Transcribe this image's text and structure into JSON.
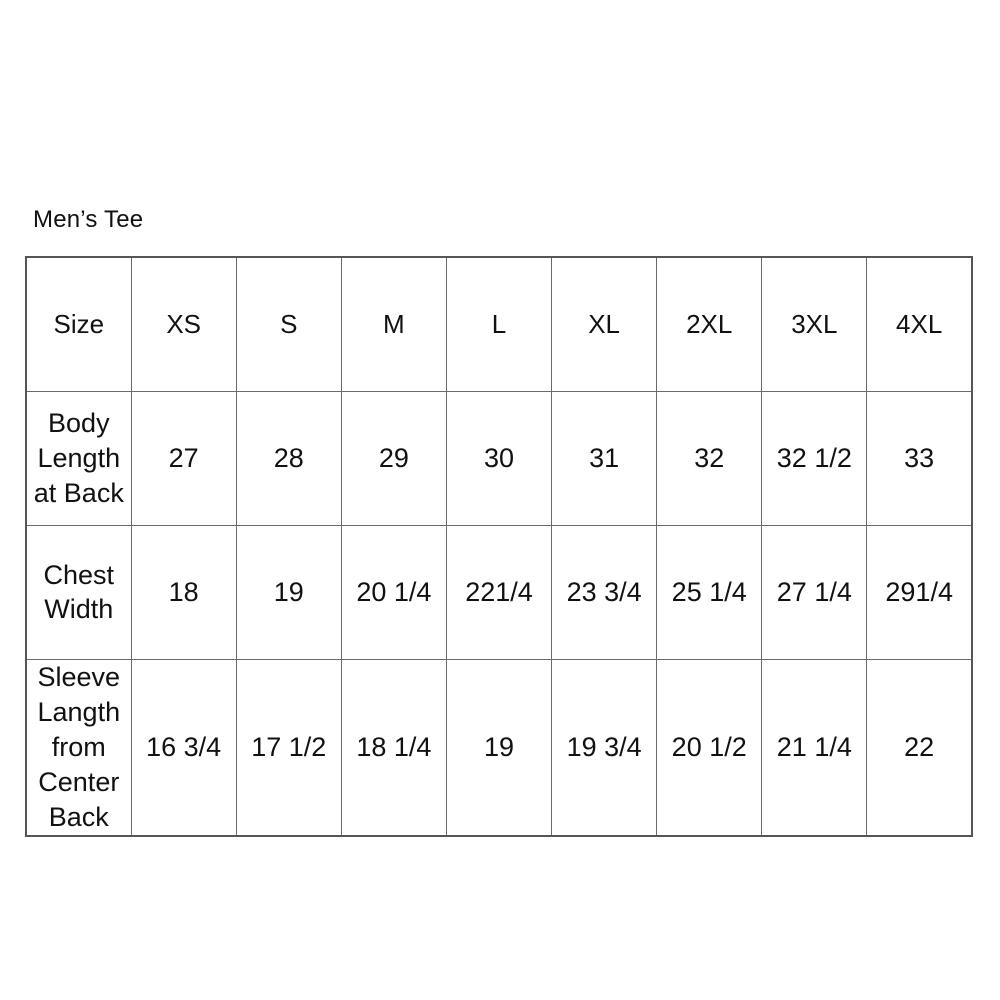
{
  "title": "Men’s Tee",
  "colors": {
    "background": "#ffffff",
    "text": "#111111",
    "grid_border": "#6a6a6a",
    "outer_border": "#565656"
  },
  "chart_data": {
    "type": "table",
    "title": "Men’s Tee",
    "columns": [
      "Size",
      "XS",
      "S",
      "M",
      "L",
      "XL",
      "2XL",
      "3XL",
      "4XL"
    ],
    "rows": [
      {
        "label": "Body Length at Back",
        "values": [
          "27",
          "28",
          "29",
          "30",
          "31",
          "32",
          "32 1/2",
          "33"
        ]
      },
      {
        "label": "Chest Width",
        "values": [
          "18",
          "19",
          "20 1/4",
          "221/4",
          "23 3/4",
          "25 1/4",
          "27 1/4",
          "291/4"
        ]
      },
      {
        "label": "Sleeve Langth from Center Back",
        "values": [
          "16 3/4",
          "17 1/2",
          "18 1/4",
          "19",
          "19 3/4",
          "20 1/2",
          "21 1/4",
          "22"
        ]
      }
    ],
    "layout": {
      "grid": "on",
      "header_position": "top-row",
      "row_label_position": "left-column"
    }
  }
}
